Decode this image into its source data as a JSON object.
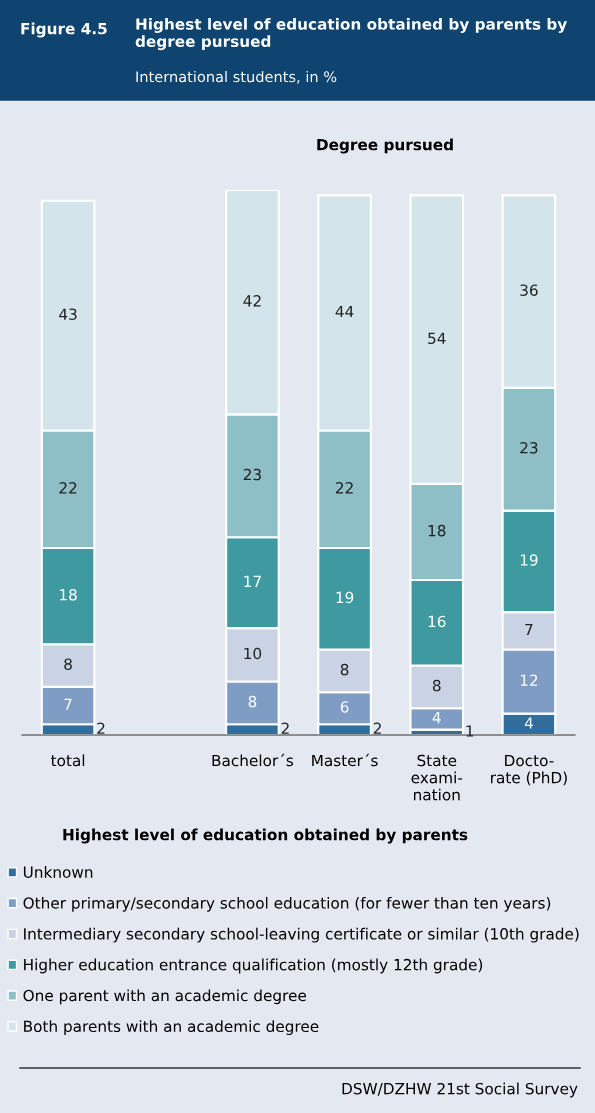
{
  "chart_data": {
    "type": "bar",
    "stacked": true,
    "title": "Highest level of education obtained by parents by degree pursued",
    "subtitle": "International students, in %",
    "annotations": [
      "Figure 4.5",
      "Degree pursued",
      "DSW/DZHW 21st Social Survey"
    ],
    "categories": [
      "total",
      null,
      "Bachelor´s",
      "Master´s",
      "State\nexami-\nnation",
      "Docto-\nrate (PhD)"
    ],
    "ylim": [
      0,
      102
    ],
    "tick_labels": "x",
    "data_labels": true,
    "grid": false,
    "legend": "bottom",
    "legend_title": "Highest level of education obtained by parents",
    "series": [
      {
        "name": "Unknown",
        "color": "#336d9c",
        "values": [
          2,
          null,
          2,
          2,
          1,
          4
        ]
      },
      {
        "name": "Other primary/secondary school education (for fewer than ten years)",
        "color": "#7f9dc4",
        "values": [
          7,
          null,
          8,
          6,
          4,
          12
        ]
      },
      {
        "name": "Intermediary secondary school-leaving certificate or similar (10th grade)",
        "color": "#c9d3e3",
        "values": [
          8,
          null,
          10,
          8,
          8,
          7
        ]
      },
      {
        "name": "Higher education entrance qualification (mostly 12th grade)",
        "color": "#3e9aa0",
        "values": [
          18,
          null,
          17,
          19,
          16,
          19
        ]
      },
      {
        "name": "One parent with an academic degree",
        "color": "#8fbfc6",
        "values": [
          22,
          null,
          23,
          22,
          18,
          23
        ]
      },
      {
        "name": "Both parents with an academic degree",
        "color": "#d3e5ea",
        "values": [
          43,
          null,
          42,
          44,
          54,
          36
        ]
      }
    ]
  }
}
